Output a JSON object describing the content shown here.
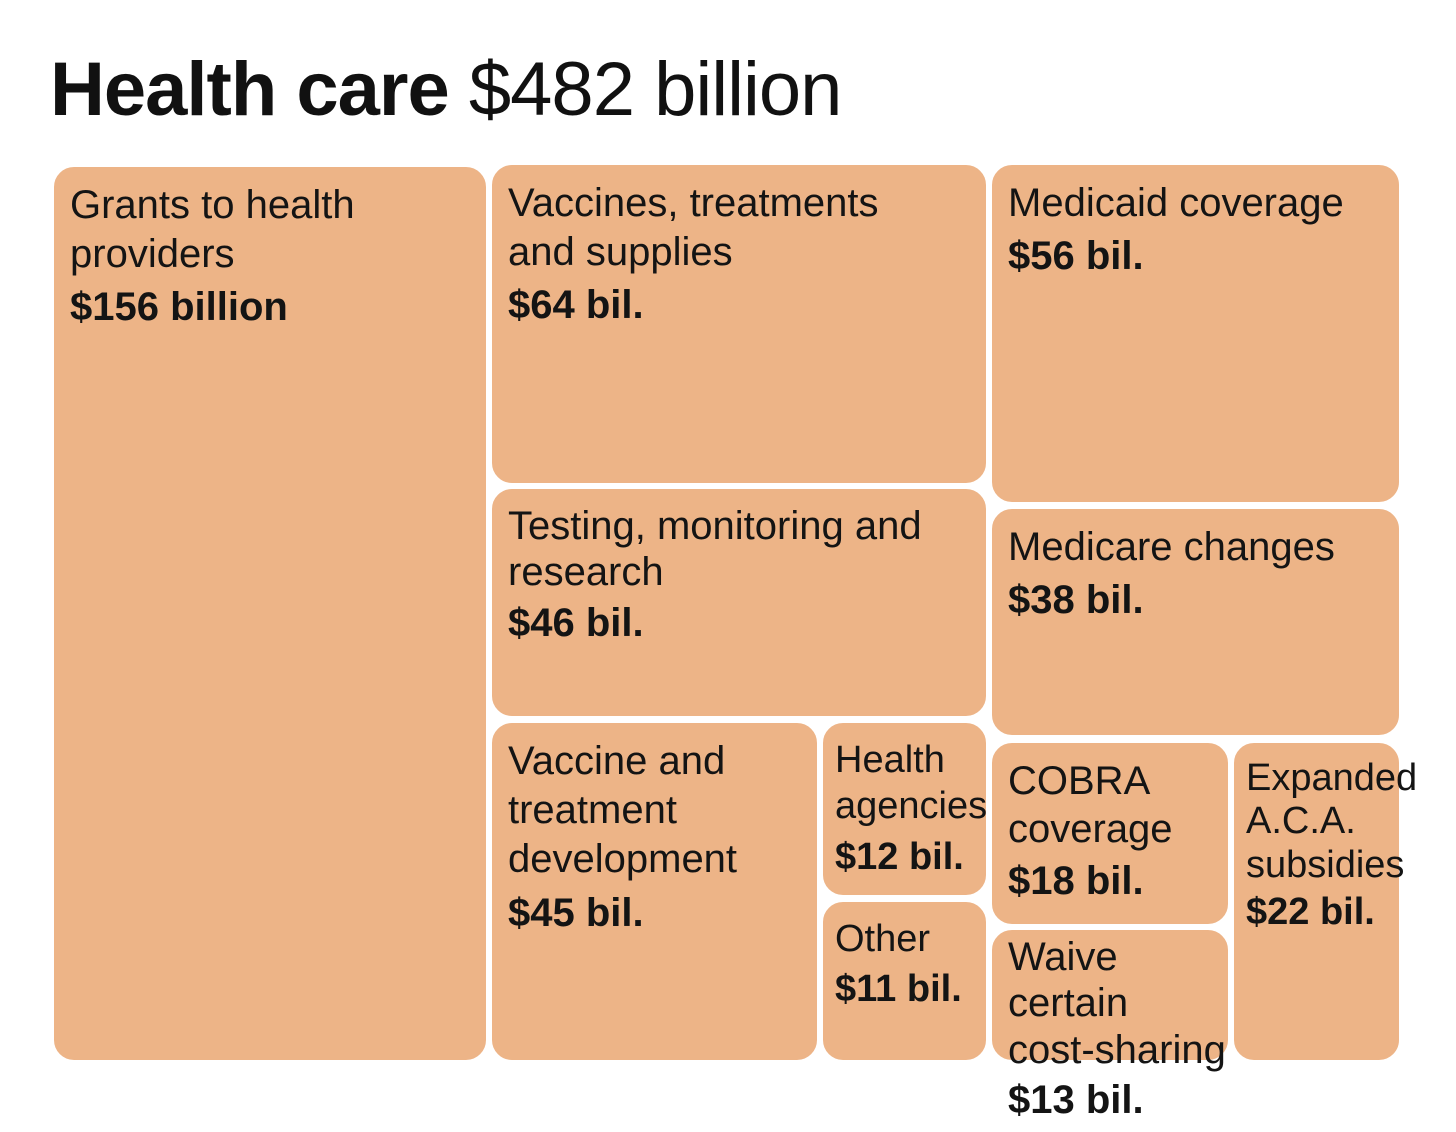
{
  "title": {
    "bold": "Health care",
    "light": "$482 billion"
  },
  "colors": {
    "tile": "#edb487",
    "border": "#ffffff",
    "text": "#141414"
  },
  "chart_data": {
    "type": "treemap",
    "title": "Health care $482 billion",
    "total": 482,
    "unit": "billion USD",
    "items": [
      {
        "name": "Grants to health providers",
        "value": 156,
        "value_label": "$156 billion"
      },
      {
        "name": "Vaccines, treatments and supplies",
        "value": 64,
        "value_label": "$64 bil."
      },
      {
        "name": "Medicaid coverage",
        "value": 56,
        "value_label": "$56 bil."
      },
      {
        "name": "Testing, monitoring and research",
        "value": 46,
        "value_label": "$46 bil."
      },
      {
        "name": "Medicare changes",
        "value": 38,
        "value_label": "$38 bil."
      },
      {
        "name": "Vaccine and treatment development",
        "value": 45,
        "value_label": "$45 bil."
      },
      {
        "name": "Health agencies",
        "value": 12,
        "value_label": "$12 bil."
      },
      {
        "name": "Other",
        "value": 11,
        "value_label": "$11 bil."
      },
      {
        "name": "COBRA coverage",
        "value": 18,
        "value_label": "$18 bil."
      },
      {
        "name": "Waive certain cost-sharing",
        "value": 13,
        "value_label": "$13 bil."
      },
      {
        "name": "Expanded A.C.A. subsidies",
        "value": 22,
        "value_label": "$22 bil."
      }
    ]
  }
}
